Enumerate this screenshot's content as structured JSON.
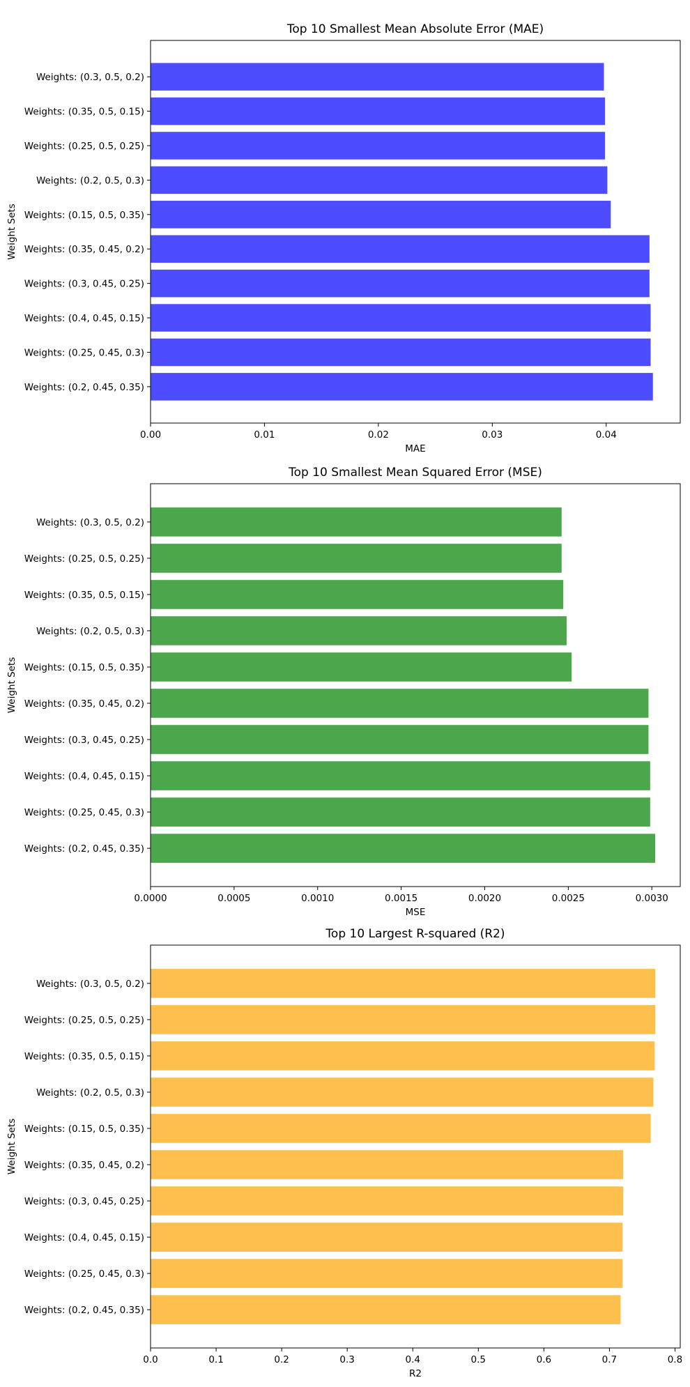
{
  "chart_data": [
    {
      "type": "bar",
      "orientation": "horizontal",
      "title": "Top 10 Smallest Mean Absolute Error (MAE)",
      "xlabel": "MAE",
      "ylabel": "Weight Sets",
      "color": "#4d4dff",
      "xlim": [
        0,
        0.0465
      ],
      "xticks": [
        "0.00",
        "0.01",
        "0.02",
        "0.03",
        "0.04"
      ],
      "xtick_values": [
        0,
        0.01,
        0.02,
        0.03,
        0.04
      ],
      "categories": [
        "Weights: (0.3, 0.5, 0.2)",
        "Weights: (0.35, 0.5, 0.15)",
        "Weights: (0.25, 0.5, 0.25)",
        "Weights: (0.2, 0.5, 0.3)",
        "Weights: (0.15, 0.5, 0.35)",
        "Weights: (0.35, 0.45, 0.2)",
        "Weights: (0.3, 0.45, 0.25)",
        "Weights: (0.4, 0.45, 0.15)",
        "Weights: (0.25, 0.45, 0.3)",
        "Weights: (0.2, 0.45, 0.35)"
      ],
      "values": [
        0.0398,
        0.0399,
        0.0399,
        0.0401,
        0.0404,
        0.0438,
        0.0438,
        0.0439,
        0.0439,
        0.0441
      ],
      "grid": false
    },
    {
      "type": "bar",
      "orientation": "horizontal",
      "title": "Top 10 Smallest Mean Squared Error (MSE)",
      "xlabel": "MSE",
      "ylabel": "Weight Sets",
      "color": "#4ca64c",
      "xlim": [
        0,
        0.00317
      ],
      "xticks": [
        "0.0000",
        "0.0005",
        "0.0010",
        "0.0015",
        "0.0020",
        "0.0025",
        "0.0030"
      ],
      "xtick_values": [
        0,
        0.0005,
        0.001,
        0.0015,
        0.002,
        0.0025,
        0.003
      ],
      "categories": [
        "Weights: (0.3, 0.5, 0.2)",
        "Weights: (0.25, 0.5, 0.25)",
        "Weights: (0.35, 0.5, 0.15)",
        "Weights: (0.2, 0.5, 0.3)",
        "Weights: (0.15, 0.5, 0.35)",
        "Weights: (0.35, 0.45, 0.2)",
        "Weights: (0.3, 0.45, 0.25)",
        "Weights: (0.4, 0.45, 0.15)",
        "Weights: (0.25, 0.45, 0.3)",
        "Weights: (0.2, 0.45, 0.35)"
      ],
      "values": [
        0.00246,
        0.00246,
        0.00247,
        0.00249,
        0.00252,
        0.00298,
        0.00298,
        0.00299,
        0.00299,
        0.00302
      ],
      "grid": false
    },
    {
      "type": "bar",
      "orientation": "horizontal",
      "title": "Top 10 Largest R-squared (R2)",
      "xlabel": "R2",
      "ylabel": "Weight Sets",
      "color": "#ffbf4d",
      "xlim": [
        0,
        0.808
      ],
      "xticks": [
        "0.0",
        "0.1",
        "0.2",
        "0.3",
        "0.4",
        "0.5",
        "0.6",
        "0.7",
        "0.8"
      ],
      "xtick_values": [
        0,
        0.1,
        0.2,
        0.3,
        0.4,
        0.5,
        0.6,
        0.7,
        0.8
      ],
      "categories": [
        "Weights: (0.3, 0.5, 0.2)",
        "Weights: (0.25, 0.5, 0.25)",
        "Weights: (0.35, 0.5, 0.15)",
        "Weights: (0.2, 0.5, 0.3)",
        "Weights: (0.15, 0.5, 0.35)",
        "Weights: (0.35, 0.45, 0.2)",
        "Weights: (0.3, 0.45, 0.25)",
        "Weights: (0.4, 0.45, 0.15)",
        "Weights: (0.25, 0.45, 0.3)",
        "Weights: (0.2, 0.45, 0.35)"
      ],
      "values": [
        0.77,
        0.77,
        0.769,
        0.767,
        0.763,
        0.721,
        0.721,
        0.72,
        0.72,
        0.717
      ],
      "grid": false
    }
  ]
}
